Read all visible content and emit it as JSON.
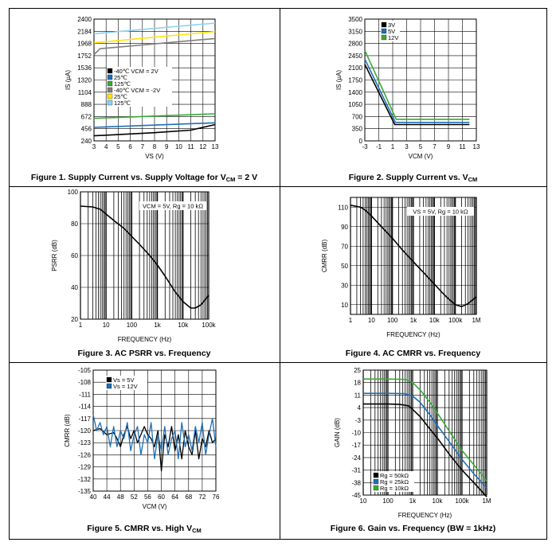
{
  "chart_data": [
    {
      "id": "fig1",
      "type": "line",
      "caption": "Figure 1. Supply Current vs. Supply Voltage for V",
      "caption_sub": "CM",
      "caption_tail": " = 2 V",
      "xlabel": "VS (V)",
      "ylabel": "IS (µA)",
      "xlim": [
        3,
        13
      ],
      "ylim": [
        240,
        2400
      ],
      "xticks": [
        3,
        4,
        5,
        6,
        7,
        8,
        9,
        10,
        11,
        12,
        13
      ],
      "xtick_labels": [
        "3",
        "4",
        "5",
        "6",
        "7",
        "8",
        "9",
        "10",
        "11",
        "12",
        "13"
      ],
      "yticks": [
        240,
        456,
        672,
        888,
        1104,
        1320,
        1536,
        1752,
        1968,
        2184,
        2400
      ],
      "ytick_labels": [
        "240",
        "456",
        "672",
        "888",
        "1104",
        "1320",
        "1536",
        "1752",
        "1968",
        "2184",
        "2400"
      ],
      "grid": "both",
      "legend_position": "middle-left",
      "series": [
        {
          "name": "-40℃ VCM = 2V",
          "color": "#000000",
          "x": [
            3,
            8,
            11,
            13
          ],
          "y": [
            330,
            385,
            430,
            530
          ]
        },
        {
          "name": "25℃",
          "color": "#1f6fb5",
          "x": [
            3,
            13
          ],
          "y": [
            480,
            560
          ]
        },
        {
          "name": "125℃",
          "color": "#3aaa35",
          "x": [
            3,
            13
          ],
          "y": [
            640,
            720
          ]
        },
        {
          "name": "-40℃ VCM = -2V",
          "color": "#7f7f7f",
          "x": [
            3,
            3.5,
            13
          ],
          "y": [
            1770,
            1875,
            2055
          ]
        },
        {
          "name": "25℃",
          "color": "#ffe600",
          "x": [
            3,
            13
          ],
          "y": [
            1980,
            2180
          ]
        },
        {
          "name": "125℃",
          "color": "#8fd3f2",
          "x": [
            3,
            13
          ],
          "y": [
            2140,
            2330
          ]
        }
      ]
    },
    {
      "id": "fig2",
      "type": "line",
      "caption": "Figure 2. Supply Current vs. V",
      "caption_sub": "CM",
      "caption_tail": "",
      "xlabel": "VCM (V)",
      "ylabel": "IS (µA)",
      "xlim": [
        -3,
        13
      ],
      "ylim": [
        0,
        3500
      ],
      "xticks": [
        -3,
        -1,
        1,
        3,
        5,
        7,
        9,
        11,
        13
      ],
      "xtick_labels": [
        "-3",
        "-1",
        "1",
        "3",
        "5",
        "7",
        "9",
        "11",
        "13"
      ],
      "yticks": [
        0,
        350,
        700,
        1050,
        1400,
        1750,
        2100,
        2450,
        2800,
        3150,
        3500
      ],
      "ytick_labels": [
        "0",
        "350",
        "700",
        "1050",
        "1400",
        "1750",
        "2100",
        "2450",
        "2800",
        "3150",
        "3500"
      ],
      "grid": "both",
      "legend_position": "top-left",
      "series": [
        {
          "name": "3V",
          "color": "#000000",
          "x": [
            -3,
            1.3,
            12
          ],
          "y": [
            2200,
            470,
            470
          ]
        },
        {
          "name": "5V",
          "color": "#1f6fb5",
          "x": [
            -3,
            1.4,
            12
          ],
          "y": [
            2350,
            530,
            530
          ]
        },
        {
          "name": "12V",
          "color": "#3aaa35",
          "x": [
            -3,
            1.5,
            12
          ],
          "y": [
            2600,
            620,
            620
          ]
        }
      ]
    },
    {
      "id": "fig3",
      "type": "line",
      "caption": "Figure 3. AC PSRR vs. Frequency",
      "caption_sub": "",
      "caption_tail": "",
      "xlabel": "FREQUENCY (Hz)",
      "ylabel": "PSRR (dB)",
      "xscale": "log",
      "xlim": [
        1,
        100000
      ],
      "ylim": [
        20,
        100
      ],
      "xticks": [
        1,
        10,
        100,
        1000,
        10000,
        100000
      ],
      "xtick_labels": [
        "1",
        "10",
        "100",
        "1k",
        "10k",
        "100k"
      ],
      "yticks": [
        20,
        40,
        60,
        80,
        100
      ],
      "ytick_labels": [
        "20",
        "40",
        "60",
        "80",
        "100"
      ],
      "grid": "both",
      "annotation": "VCM = 5V, Rg = 10 kΩ",
      "series": [
        {
          "name": "PSRR",
          "color": "#000000",
          "x": [
            1,
            3,
            6,
            10,
            20,
            50,
            100,
            200,
            500,
            1000,
            2000,
            5000,
            10000,
            20000,
            30000,
            50000,
            100000
          ],
          "y": [
            91,
            90.5,
            89,
            86,
            82,
            77,
            72,
            67,
            60,
            54,
            47,
            37,
            31,
            27,
            27,
            29,
            35
          ]
        }
      ]
    },
    {
      "id": "fig4",
      "type": "line",
      "caption": "Figure 4. AC CMRR vs. Frequency",
      "caption_sub": "",
      "caption_tail": "",
      "xlabel": "FREQUENCY (Hz)",
      "ylabel": "CMRR (dB)",
      "xscale": "log",
      "xlim": [
        1,
        1000000
      ],
      "ylim": [
        0,
        120
      ],
      "xticks": [
        1,
        10,
        100,
        1000,
        10000,
        100000,
        1000000
      ],
      "xtick_labels": [
        "1",
        "10",
        "100",
        "1k",
        "10k",
        "100k",
        "1M"
      ],
      "yticks": [
        10,
        30,
        50,
        70,
        90,
        110
      ],
      "ytick_labels": [
        "10",
        "30",
        "50",
        "70",
        "90",
        "110"
      ],
      "grid": "both",
      "annotation": "VS = 5V, Rg = 10 kΩ",
      "series": [
        {
          "name": "CMRR",
          "color": "#000000",
          "x": [
            1,
            3,
            5,
            10,
            30,
            100,
            300,
            1000,
            3000,
            10000,
            30000,
            60000,
            100000,
            200000,
            400000,
            1000000
          ],
          "y": [
            112,
            110,
            107,
            101,
            90,
            78,
            66,
            54,
            43,
            31,
            20,
            14,
            10,
            8,
            11,
            18
          ]
        }
      ]
    },
    {
      "id": "fig5",
      "type": "line",
      "caption": "Figure 5. CMRR vs. High V",
      "caption_sub": "CM",
      "caption_tail": "",
      "xlabel": "VCM (V)",
      "ylabel": "CMRR (dB)",
      "xlim": [
        40,
        76
      ],
      "ylim": [
        -135,
        -105
      ],
      "xticks": [
        40,
        44,
        48,
        52,
        56,
        60,
        64,
        68,
        72,
        76
      ],
      "xtick_labels": [
        "40",
        "44",
        "48",
        "52",
        "56",
        "60",
        "64",
        "68",
        "72",
        "76"
      ],
      "yticks": [
        -105,
        -108,
        -111,
        -114,
        -117,
        -120,
        -123,
        -126,
        -129,
        -132,
        -135
      ],
      "ytick_labels": [
        "-105",
        "-108",
        "-111",
        "-114",
        "-117",
        "-120",
        "-123",
        "-126",
        "-129",
        "-132",
        "-135"
      ],
      "grid": "both",
      "legend_position": "top-center",
      "series": [
        {
          "name": "Vs = 5V",
          "color": "#000000",
          "x": [
            40,
            42,
            44,
            46,
            47,
            48,
            49,
            50,
            51,
            52,
            53,
            54,
            55,
            56,
            57,
            58,
            59,
            60,
            61,
            62,
            63,
            64,
            65,
            66,
            67,
            68,
            69,
            70,
            71,
            72,
            73,
            74,
            75,
            76
          ],
          "y": [
            -120,
            -119.5,
            -121,
            -120.5,
            -122,
            -124,
            -121,
            -119,
            -122,
            -120,
            -123,
            -121,
            -119,
            -121,
            -122,
            -124,
            -120,
            -130,
            -121,
            -124,
            -119,
            -125,
            -121,
            -127,
            -120,
            -124,
            -126,
            -120,
            -127,
            -122,
            -124,
            -120,
            -123,
            -122
          ]
        },
        {
          "name": "Vs = 12V",
          "color": "#1f6fb5",
          "x": [
            40,
            41,
            42,
            43,
            44,
            45,
            46,
            47,
            48,
            49,
            50,
            51,
            52,
            53,
            54,
            55,
            56,
            57,
            58,
            59,
            60,
            61,
            62,
            63,
            64,
            65,
            66,
            67,
            68,
            69,
            70,
            71,
            72,
            73,
            74,
            75,
            76
          ],
          "y": [
            -116,
            -120,
            -118,
            -121,
            -119,
            -124,
            -119,
            -124,
            -120,
            -122,
            -118,
            -125,
            -121,
            -119,
            -126,
            -121,
            -123,
            -118,
            -127,
            -121,
            -125,
            -119,
            -126,
            -122,
            -120,
            -127,
            -118,
            -124,
            -121,
            -125,
            -119,
            -123,
            -118,
            -126,
            -121,
            -117,
            -124
          ]
        }
      ]
    },
    {
      "id": "fig6",
      "type": "line",
      "caption": "Figure 6. Gain vs. Frequency (BW = 1kHz)",
      "caption_sub": "",
      "caption_tail": "",
      "xlabel": "FREQUENCY (Hz)",
      "ylabel": "GAIN (dB)",
      "xscale": "log",
      "xlim": [
        10,
        1000000
      ],
      "ylim": [
        -45,
        25
      ],
      "xticks": [
        10,
        100,
        1000,
        10000,
        100000,
        1000000
      ],
      "xtick_labels": [
        "10",
        "100",
        "1k",
        "10k",
        "100k",
        "1M"
      ],
      "yticks": [
        25,
        18,
        11,
        4,
        -3,
        -10,
        -17,
        -24,
        -31,
        -38,
        -45
      ],
      "ytick_labels": [
        "25",
        "18",
        "11",
        "4",
        "-3",
        "-10",
        "-17",
        "-24",
        "-31",
        "-38",
        "-45"
      ],
      "grid": "both",
      "legend_position": "bottom-left",
      "series": [
        {
          "name": "Rg = 50kΩ",
          "color": "#000000",
          "x": [
            10,
            100,
            300,
            700,
            1000,
            2000,
            5000,
            10000,
            30000,
            100000,
            300000,
            1000000
          ],
          "y": [
            6,
            6,
            5.8,
            5,
            3,
            -1,
            -8,
            -13,
            -22,
            -31,
            -38,
            -46
          ]
        },
        {
          "name": "Rg = 25kΩ",
          "color": "#1f6fb5",
          "x": [
            10,
            100,
            500,
            1000,
            2000,
            5000,
            10000,
            30000,
            100000,
            300000,
            1000000
          ],
          "y": [
            12,
            12,
            11.8,
            10.5,
            7,
            0,
            -6,
            -15,
            -25,
            -33,
            -41
          ]
        },
        {
          "name": "Rg = 10kΩ",
          "color": "#3aaa35",
          "x": [
            10,
            100,
            500,
            1000,
            2000,
            5000,
            10000,
            30000,
            100000,
            300000,
            1000000
          ],
          "y": [
            20,
            20,
            19.8,
            18,
            14,
            7,
            1,
            -9,
            -20,
            -28,
            -37
          ]
        }
      ]
    }
  ]
}
